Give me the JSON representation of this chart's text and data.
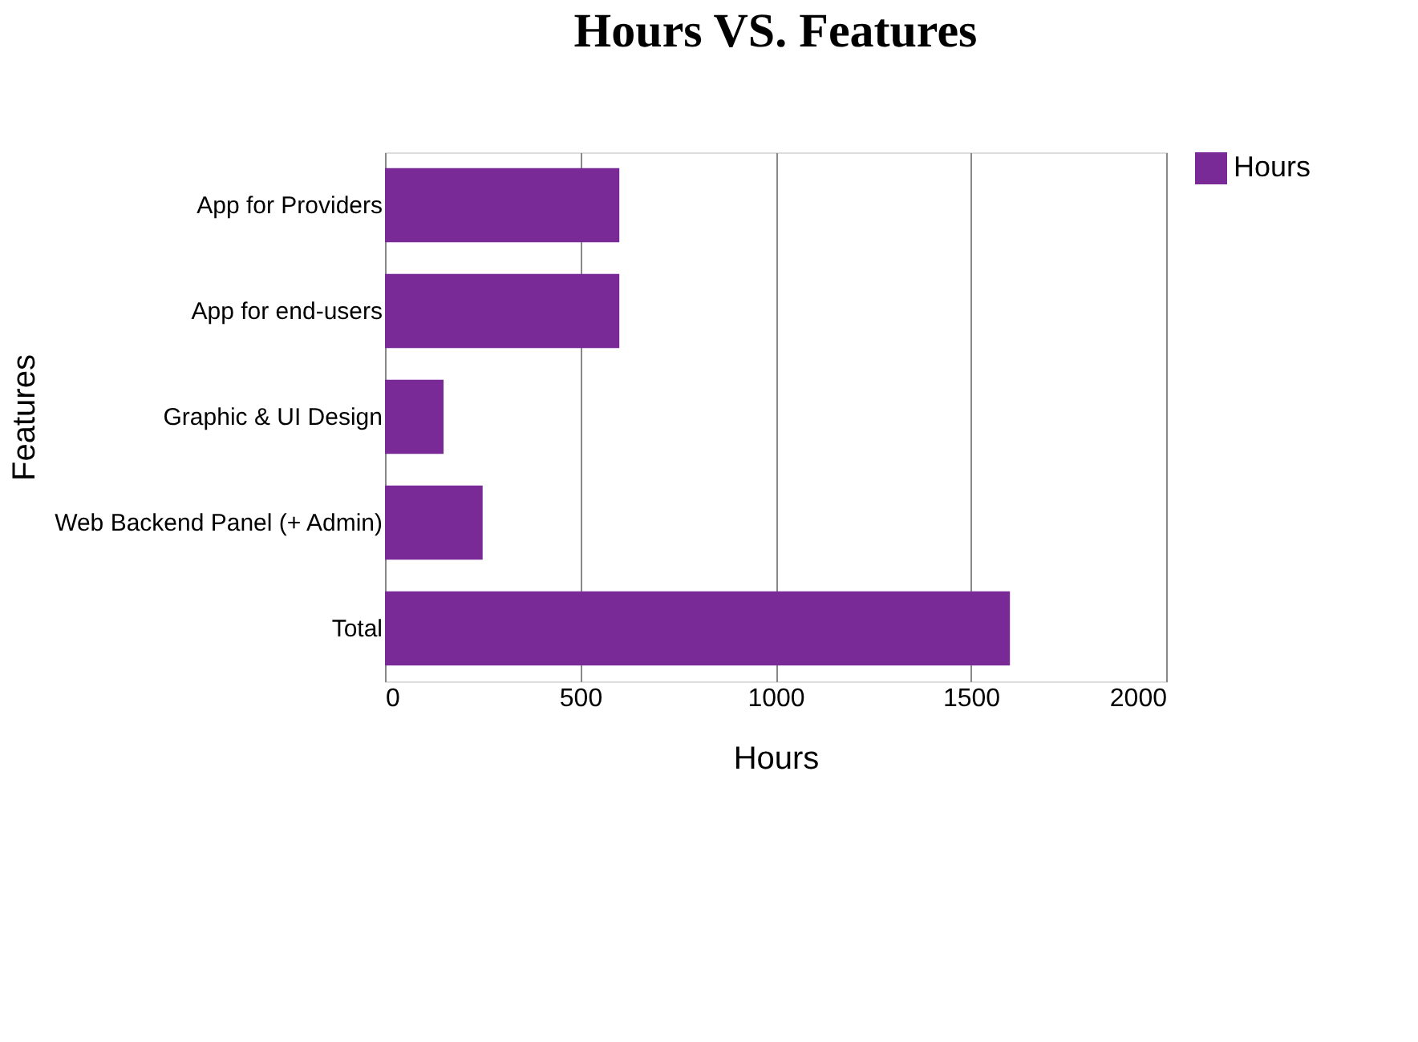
{
  "chart_data": {
    "type": "bar",
    "orientation": "horizontal",
    "title": "Hours VS. Features",
    "xlabel": "Hours",
    "ylabel": "Features",
    "categories": [
      "App for Providers",
      "App for end-users",
      "Graphic & UI Design",
      "Web Backend Panel (+ Admin)",
      "Total"
    ],
    "series": [
      {
        "name": "Hours",
        "color": "#7a2a96",
        "values": [
          600,
          600,
          150,
          250,
          1600
        ]
      }
    ],
    "xlim": [
      0,
      2000
    ],
    "xticks": [
      0,
      500,
      1000,
      1500,
      2000
    ],
    "grid": "x",
    "legend": "top right"
  }
}
